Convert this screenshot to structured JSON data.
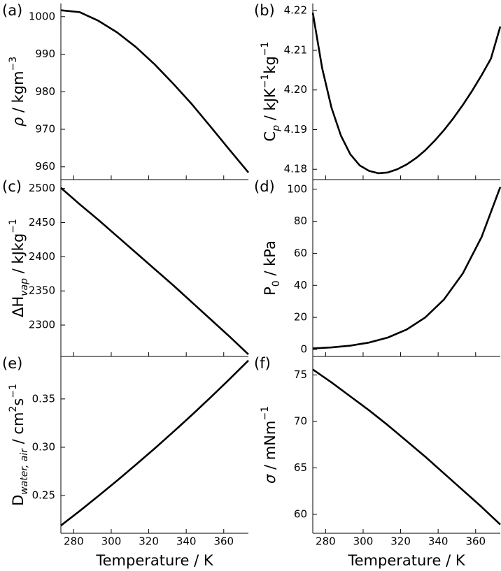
{
  "chart_data": [
    {
      "type": "line",
      "panel_label": "(a)",
      "ylabel": [
        {
          "text": "ρ",
          "style": "italic"
        },
        {
          "text": " / kgm"
        },
        {
          "text": "−3",
          "shift": "super"
        }
      ],
      "x": [
        273.15,
        283.15,
        293.15,
        303.15,
        313.15,
        323.15,
        333.15,
        343.15,
        353.15,
        363.15,
        373.15
      ],
      "values": [
        1001.7,
        1001.2,
        998.9,
        995.8,
        991.9,
        987.3,
        982.1,
        976.6,
        970.6,
        964.5,
        958.5
      ],
      "color": "#000000",
      "xlim": [
        273.15,
        373.15
      ],
      "xticks": [
        280,
        300,
        320,
        340,
        360
      ],
      "ylim": [
        956.6,
        1003.5
      ],
      "yticks": [
        960,
        970,
        980,
        990,
        1000
      ]
    },
    {
      "type": "line",
      "panel_label": "(b)",
      "ylabel": [
        {
          "text": "C"
        },
        {
          "text": "p",
          "shift": "sub",
          "style": "italic"
        },
        {
          "text": " / kJK"
        },
        {
          "text": "−1",
          "shift": "super"
        },
        {
          "text": "kg"
        },
        {
          "text": "−1",
          "shift": "super"
        }
      ],
      "x": [
        273.15,
        278.15,
        283.15,
        288.15,
        293.15,
        298.15,
        303.15,
        308.15,
        313.15,
        318.15,
        323.15,
        328.15,
        333.15,
        338.15,
        343.15,
        348.15,
        353.15,
        358.15,
        363.15,
        368.15,
        373.15
      ],
      "values": [
        4.2195,
        4.2055,
        4.1955,
        4.1885,
        4.1838,
        4.181,
        4.1796,
        4.179,
        4.1792,
        4.18,
        4.1812,
        4.1828,
        4.1848,
        4.1872,
        4.1899,
        4.1929,
        4.1962,
        4.1998,
        4.2037,
        4.2079,
        4.216
      ],
      "color": "#000000",
      "xlim": [
        273.15,
        373.15
      ],
      "xticks": [
        280,
        300,
        320,
        340,
        360
      ],
      "ylim": [
        4.1774,
        4.2218
      ],
      "yticks": [
        4.18,
        4.19,
        {
          "value": 4.2,
          "label": "4.20"
        },
        4.21,
        4.22
      ]
    },
    {
      "type": "line",
      "panel_label": "(c)",
      "ylabel": [
        {
          "text": "ΔH"
        },
        {
          "text": "vap",
          "shift": "sub",
          "style": "italic"
        },
        {
          "text": " / kJkg"
        },
        {
          "text": "−1",
          "shift": "super"
        }
      ],
      "x": [
        273.15,
        283.15,
        293.15,
        303.15,
        313.15,
        323.15,
        333.15,
        343.15,
        353.15,
        363.15,
        373.15
      ],
      "values": [
        2501,
        2477,
        2454,
        2430,
        2406,
        2382,
        2358,
        2333,
        2308,
        2283,
        2257
      ],
      "color": "#000000",
      "xlim": [
        273.15,
        373.15
      ],
      "xticks": [
        280,
        300,
        320,
        340,
        360
      ],
      "ylim": [
        2254,
        2513
      ],
      "yticks": [
        2300,
        2350,
        2400,
        2450,
        2500
      ]
    },
    {
      "type": "line",
      "panel_label": "(d)",
      "ylabel": [
        {
          "text": "P"
        },
        {
          "text": "0",
          "shift": "sub"
        },
        {
          "text": " / kPa"
        }
      ],
      "x": [
        273.15,
        283.15,
        293.15,
        303.15,
        313.15,
        323.15,
        333.15,
        343.15,
        353.15,
        363.15,
        373.15
      ],
      "values": [
        0.61,
        1.23,
        2.34,
        4.25,
        7.38,
        12.35,
        19.95,
        31.2,
        47.4,
        70.1,
        101.4
      ],
      "color": "#000000",
      "xlim": [
        273.15,
        373.15
      ],
      "xticks": [
        280,
        300,
        320,
        340,
        360
      ],
      "ylim": [
        -4.4,
        106
      ],
      "yticks": [
        0,
        20,
        40,
        60,
        80,
        100
      ]
    },
    {
      "type": "line",
      "panel_label": "(e)",
      "xlabel": "Temperature / K",
      "ylabel": [
        {
          "text": "D"
        },
        {
          "text": "water, air",
          "shift": "sub",
          "style": "italic"
        },
        {
          "text": " / cm"
        },
        {
          "text": "2",
          "shift": "super"
        },
        {
          "text": "s"
        },
        {
          "text": "−1",
          "shift": "super"
        }
      ],
      "x": [
        273.15,
        283.15,
        293.15,
        303.15,
        313.15,
        323.15,
        333.15,
        343.15,
        353.15,
        363.15,
        373.15
      ],
      "values": [
        0.219,
        0.234,
        0.2496,
        0.2655,
        0.282,
        0.2987,
        0.316,
        0.3337,
        0.3519,
        0.3706,
        0.3898
      ],
      "color": "#000000",
      "xlim": [
        273.15,
        373.15
      ],
      "xticks": [
        280,
        300,
        320,
        340,
        360
      ],
      "ylim": [
        0.211,
        0.394
      ],
      "yticks": [
        0.25,
        {
          "value": 0.3,
          "label": "0.30"
        },
        0.35
      ]
    },
    {
      "type": "line",
      "panel_label": "(f)",
      "xlabel": "Temperature / K",
      "ylabel": [
        {
          "text": "σ",
          "style": "italic"
        },
        {
          "text": " / mNm"
        },
        {
          "text": "−1",
          "shift": "super"
        }
      ],
      "x": [
        273.15,
        283.15,
        293.15,
        303.15,
        313.15,
        323.15,
        333.15,
        343.15,
        353.15,
        363.15,
        373.15
      ],
      "values": [
        75.6,
        74.2,
        72.7,
        71.2,
        69.6,
        67.9,
        66.2,
        64.4,
        62.6,
        60.8,
        58.9
      ],
      "color": "#000000",
      "xlim": [
        273.15,
        373.15
      ],
      "xticks": [
        280,
        300,
        320,
        340,
        360
      ],
      "ylim": [
        57.96,
        77.0
      ],
      "yticks": [
        60,
        65,
        70,
        75
      ]
    }
  ]
}
